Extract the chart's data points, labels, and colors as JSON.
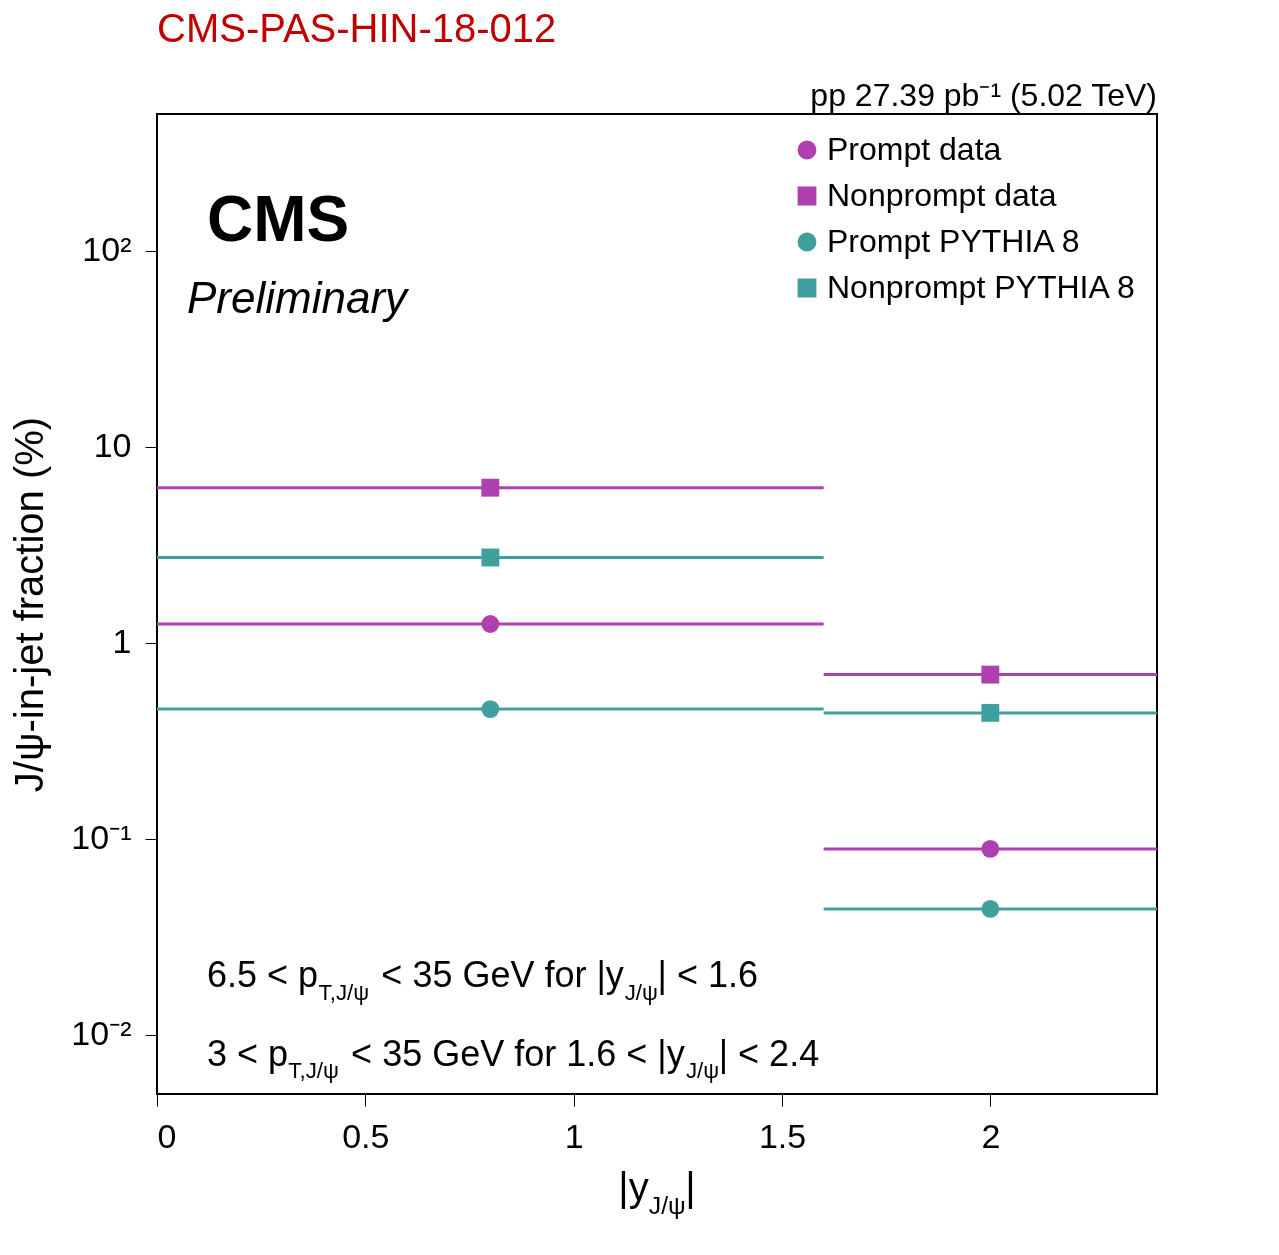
{
  "chart_data": {
    "type": "scatter",
    "title": "CMS-PAS-HIN-18-012",
    "xlabel": "|y$_{J/ψ}$|",
    "ylabel": "J/ψ-in-jet fraction (%)",
    "x": [
      0.8,
      2.0
    ],
    "xlim": [
      0,
      2.4
    ],
    "xticks": [
      0,
      0.5,
      1,
      1.5,
      2
    ],
    "log": "y",
    "ylim": [
      0.005,
      500
    ],
    "yticks": [
      {
        "value": 0.01,
        "label": "10⁻²"
      },
      {
        "value": 0.1,
        "label": "10⁻¹"
      },
      1,
      10,
      {
        "value": 100,
        "label": "10²"
      }
    ],
    "grid": false,
    "legend": "top right",
    "series": [
      {
        "name": "Prompt data",
        "color": "#b040b0",
        "marker": "circle",
        "values": [
          1.25,
          0.089
        ],
        "xerrors": [
          0.8,
          0.4
        ]
      },
      {
        "name": "Nonprompt data",
        "color": "#b040b0",
        "marker": "square",
        "values": [
          6.2,
          0.69
        ],
        "xerrors": [
          0.8,
          0.4
        ]
      },
      {
        "name": "Prompt PYTHIA 8",
        "color": "#40a0a0",
        "marker": "circle",
        "values": [
          0.46,
          0.044
        ],
        "xerrors": [
          0.8,
          0.4
        ]
      },
      {
        "name": "Nonprompt PYTHIA 8",
        "color": "#40a0a0",
        "marker": "square",
        "values": [
          2.73,
          0.44
        ],
        "xerrors": [
          0.8,
          0.4
        ]
      }
    ],
    "annotations": [
      "CMS",
      "Preliminary",
      "pp 27.39 pb⁻¹ (5.02 TeV)",
      "6.5 < p$_{T,J/ψ}$ < 35 GeV for |y$_{J/ψ}$| < 1.6",
      "3 < p$_{T,J/ψ}$ < 35 GeV for 1.6 < |y$_{J/ψ}$| < 2.4"
    ]
  }
}
